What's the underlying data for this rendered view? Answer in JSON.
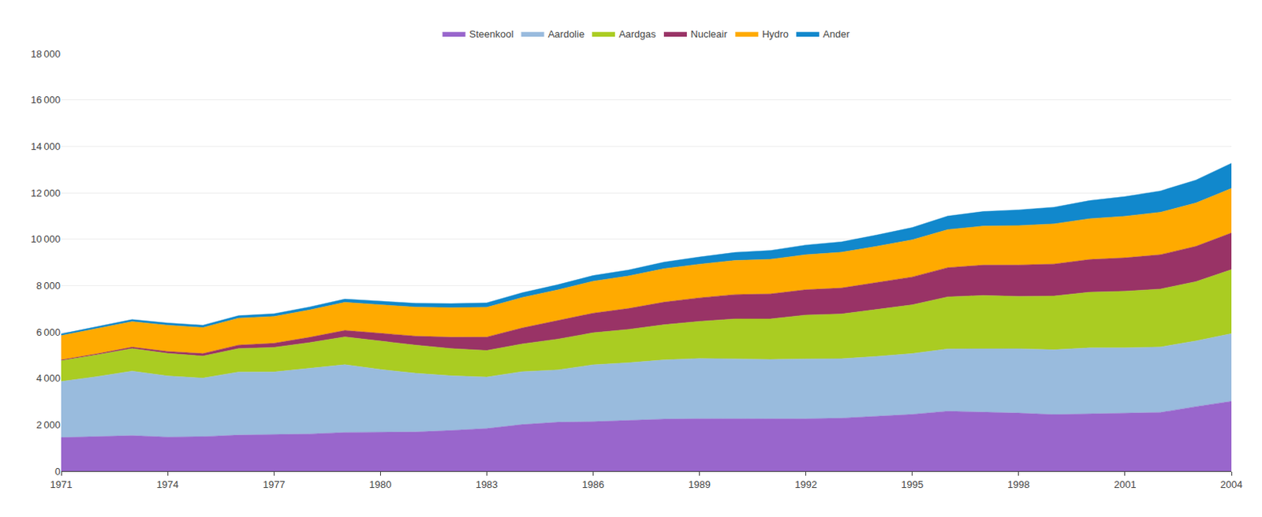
{
  "chart_data": {
    "type": "area",
    "stacked": true,
    "x": [
      1971,
      1972,
      1973,
      1974,
      1975,
      1976,
      1977,
      1978,
      1979,
      1980,
      1981,
      1982,
      1983,
      1984,
      1985,
      1986,
      1987,
      1988,
      1989,
      1990,
      1991,
      1992,
      1993,
      1994,
      1995,
      1996,
      1997,
      1998,
      1999,
      2000,
      2001,
      2002,
      2003,
      2004
    ],
    "series": [
      {
        "name": "Steenkool",
        "color": "#9966cc",
        "values": [
          1449,
          1497,
          1530,
          1468,
          1487,
          1554,
          1567,
          1601,
          1666,
          1668,
          1689,
          1754,
          1838,
          2008,
          2107,
          2133,
          2181,
          2242,
          2261,
          2258,
          2247,
          2255,
          2285,
          2359,
          2446,
          2583,
          2545,
          2502,
          2438,
          2469,
          2479,
          2530,
          2781,
          3010
        ]
      },
      {
        "name": "Aardolie",
        "color": "#99bbdd",
        "values": [
          2418,
          2574,
          2781,
          2634,
          2523,
          2719,
          2707,
          2825,
          2921,
          2714,
          2529,
          2355,
          2217,
          2280,
          2256,
          2450,
          2490,
          2553,
          2595,
          2583,
          2568,
          2580,
          2560,
          2586,
          2621,
          2685,
          2726,
          2774,
          2793,
          2844,
          2839,
          2819,
          2832,
          2917
        ]
      },
      {
        "name": "Aardgas",
        "color": "#aacc22",
        "values": [
          897,
          940,
          975,
          974,
          952,
          1012,
          1060,
          1113,
          1200,
          1224,
          1212,
          1175,
          1145,
          1194,
          1327,
          1380,
          1440,
          1515,
          1600,
          1720,
          1744,
          1894,
          1928,
          2024,
          2102,
          2244,
          2301,
          2258,
          2316,
          2399,
          2436,
          2501,
          2557,
          2760
        ]
      },
      {
        "name": "Nucleair",
        "color": "#993366",
        "values": [
          29,
          44,
          59,
          84,
          107,
          147,
          177,
          228,
          278,
          330,
          388,
          490,
          580,
          690,
          790,
          845,
          900,
          975,
          1015,
          1050,
          1080,
          1090,
          1120,
          1160,
          1200,
          1260,
          1310,
          1350,
          1380,
          1410,
          1440,
          1480,
          1520,
          1580
        ]
      },
      {
        "name": "Hydro",
        "color": "#ffaa00",
        "values": [
          1050,
          1080,
          1100,
          1130,
          1120,
          1160,
          1155,
          1180,
          1210,
          1235,
          1250,
          1270,
          1280,
          1310,
          1330,
          1380,
          1400,
          1440,
          1450,
          1470,
          1490,
          1510,
          1540,
          1560,
          1600,
          1640,
          1680,
          1700,
          1730,
          1760,
          1790,
          1830,
          1870,
          1920
        ]
      },
      {
        "name": "Ander",
        "color": "#1188cc",
        "values": [
          72,
          80,
          88,
          94,
          100,
          108,
          118,
          128,
          140,
          155,
          165,
          178,
          192,
          208,
          224,
          240,
          258,
          285,
          310,
          345,
          380,
          415,
          448,
          490,
          530,
          580,
          628,
          678,
          720,
          778,
          848,
          918,
          988,
          1080
        ]
      }
    ],
    "xlim": [
      1971,
      2004
    ],
    "xticks": [
      1971,
      1974,
      1977,
      1980,
      1983,
      1986,
      1989,
      1992,
      1995,
      1998,
      2001,
      2004
    ],
    "ylim": [
      0,
      18000
    ],
    "yticks": [
      0,
      {
        "value": 2000,
        "label": "2 000"
      },
      {
        "value": 4000,
        "label": "4 000"
      },
      {
        "value": 6000,
        "label": "6 000"
      },
      {
        "value": 8000,
        "label": "8 000"
      },
      {
        "value": 10000,
        "label": "10 000"
      },
      {
        "value": 12000,
        "label": "12 000"
      },
      {
        "value": 14000,
        "label": "14 000"
      },
      {
        "value": 16000,
        "label": "16 000"
      },
      {
        "value": 18000,
        "label": "18 000"
      }
    ],
    "grid": "y",
    "legend": "top"
  }
}
